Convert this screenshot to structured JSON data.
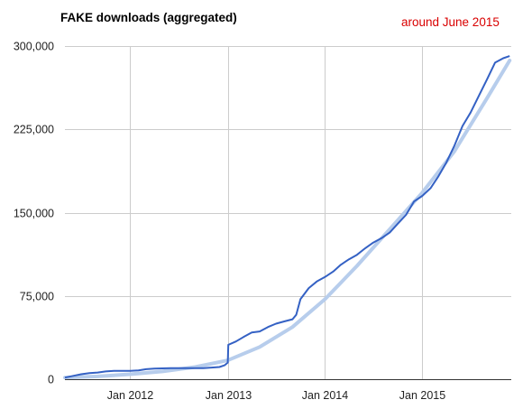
{
  "chart_data": {
    "type": "line",
    "title": "FAKE downloads (aggregated)",
    "annotation": "around June 2015",
    "xlabel": "",
    "ylabel": "",
    "x_ticks": [
      {
        "date": "2012-01-01",
        "label": "Jan 2012"
      },
      {
        "date": "2013-01-01",
        "label": "Jan 2013"
      },
      {
        "date": "2014-01-01",
        "label": "Jan 2014"
      },
      {
        "date": "2015-01-01",
        "label": "Jan 2015"
      }
    ],
    "xlim": [
      "2011-05-01",
      "2015-12-01"
    ],
    "ylim": [
      0,
      300000
    ],
    "y_ticks": [
      {
        "value": 0,
        "label": "0"
      },
      {
        "value": 75000,
        "label": "75,000"
      },
      {
        "value": 150000,
        "label": "150,000"
      },
      {
        "value": 225000,
        "label": "225,000"
      },
      {
        "value": 300000,
        "label": "300,000"
      }
    ],
    "grid": true,
    "colors": {
      "series": "#3461c4",
      "trend": "#b7cdec",
      "annotation": "#d90000",
      "grid": "#cccccc"
    },
    "series": [
      {
        "x": [
          "2011-05-01",
          "2011-06-01",
          "2011-07-01",
          "2011-08-01",
          "2011-09-01",
          "2011-10-01",
          "2011-11-01",
          "2011-12-01",
          "2012-01-01",
          "2012-02-01",
          "2012-03-01",
          "2012-04-01",
          "2012-06-01",
          "2012-08-01",
          "2012-10-01",
          "2012-11-01",
          "2012-12-01",
          "2012-12-20",
          "2013-01-01",
          "2013-01-03",
          "2013-02-01",
          "2013-03-01",
          "2013-04-01",
          "2013-05-01",
          "2013-06-01",
          "2013-07-01",
          "2013-08-01",
          "2013-09-01",
          "2013-09-15",
          "2013-10-01",
          "2013-11-01",
          "2013-12-01",
          "2014-01-01",
          "2014-02-01",
          "2014-03-01",
          "2014-04-01",
          "2014-05-01",
          "2014-06-01",
          "2014-07-01",
          "2014-08-01",
          "2014-09-01",
          "2014-10-01",
          "2014-11-01",
          "2014-12-01",
          "2015-01-01",
          "2015-02-01",
          "2015-03-01",
          "2015-04-01",
          "2015-05-01",
          "2015-06-01",
          "2015-07-01",
          "2015-08-01",
          "2015-09-01",
          "2015-10-01",
          "2015-11-01",
          "2015-11-25"
        ],
        "y": [
          1500,
          3000,
          4500,
          5500,
          6000,
          7000,
          7500,
          7500,
          7500,
          8000,
          9000,
          9500,
          10000,
          10000,
          10000,
          10500,
          11000,
          12500,
          15000,
          31000,
          34000,
          38000,
          42000,
          43000,
          47000,
          50000,
          52000,
          54000,
          58000,
          72000,
          82000,
          88000,
          92000,
          97000,
          103000,
          108000,
          112000,
          118000,
          123000,
          127000,
          132000,
          140000,
          148000,
          160000,
          165000,
          172000,
          182000,
          195000,
          210000,
          228000,
          240000,
          255000,
          270000,
          285000,
          289000,
          291000
        ]
      }
    ],
    "trend": {
      "x": [
        "2011-05-01",
        "2011-09-01",
        "2012-01-01",
        "2012-05-01",
        "2012-09-01",
        "2013-01-01",
        "2013-05-01",
        "2013-09-01",
        "2014-01-01",
        "2014-05-01",
        "2014-09-01",
        "2015-01-01",
        "2015-05-01",
        "2015-09-01",
        "2015-11-25"
      ],
      "y": [
        1500,
        2500,
        4500,
        7000,
        11000,
        17000,
        29000,
        47000,
        72000,
        102000,
        135000,
        168000,
        205000,
        253000,
        287000
      ]
    }
  }
}
